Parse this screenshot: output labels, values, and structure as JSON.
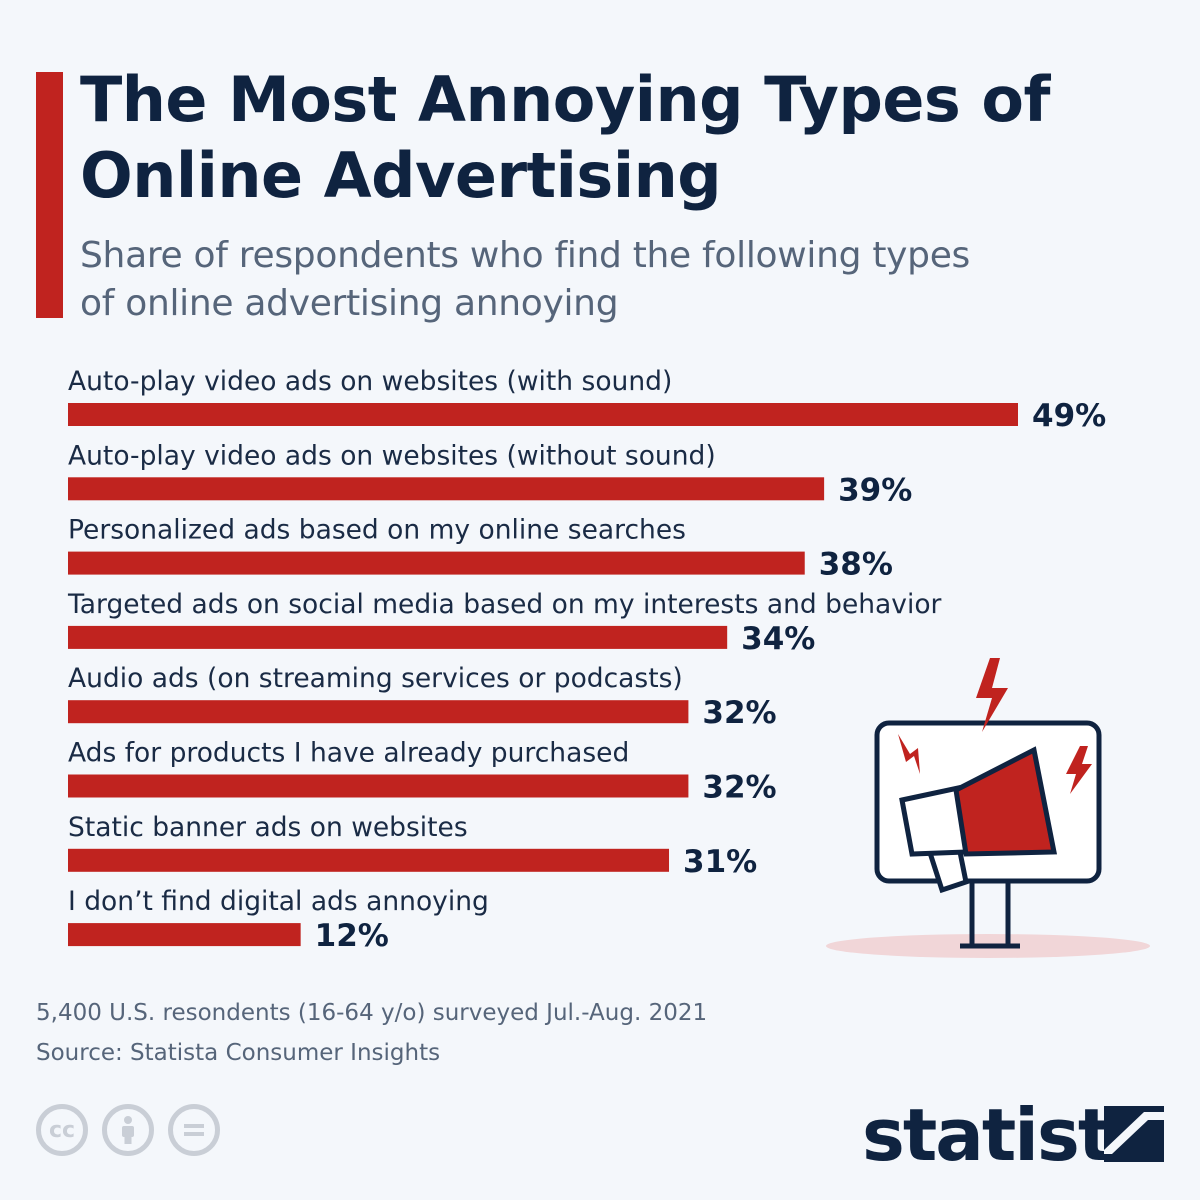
{
  "title": "The Most Annoying Types of Online Advertising",
  "subtitle": "Share of respondents who find the following types of online advertising annoying",
  "colors": {
    "bar": "#c0231f",
    "accent": "#c0231f",
    "text": "#0f2340",
    "background": "#f4f7fb"
  },
  "chart_data": {
    "type": "bar",
    "orientation": "horizontal",
    "categories": [
      "Auto-play video ads on websites (with sound)",
      "Auto-play video ads on websites (without sound)",
      "Personalized ads based on my online searches",
      "Targeted ads on social media based on my interests and behavior",
      "Audio ads (on streaming services or podcasts)",
      "Ads for products I have already purchased",
      "Static banner ads on websites",
      "I don’t find digital ads annoying"
    ],
    "values": [
      49,
      39,
      38,
      34,
      32,
      32,
      31,
      12
    ],
    "value_labels": [
      "49%",
      "39%",
      "38%",
      "34%",
      "32%",
      "32%",
      "31%",
      "12%"
    ],
    "unit": "%",
    "xlim": [
      0,
      49
    ],
    "grid": false,
    "legend": "none"
  },
  "footer": {
    "survey_note": "5,400 U.S. resondents (16-64 y/o) surveyed Jul.-Aug. 2021",
    "source": "Source: Statista Consumer Insights",
    "brand": "statista"
  },
  "icons": [
    "cc-icon",
    "attribution-icon",
    "no-derivatives-icon",
    "megaphone-monitor-illustration",
    "statista-logo-icon"
  ]
}
